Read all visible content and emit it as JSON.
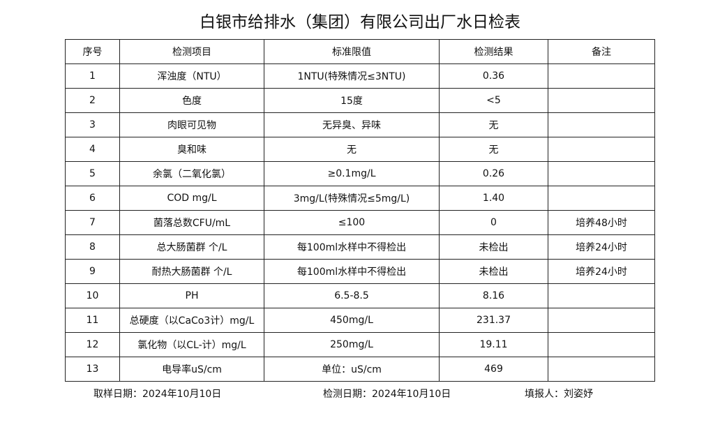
{
  "title": "白银市给排水（集团）有限公司出厂水日检表",
  "headers": [
    "序号",
    "检测项目",
    "标准限值",
    "检测结果",
    "备注"
  ],
  "rows": [
    [
      "1",
      "浑浊度（NTU）",
      "1NTU(特殊情况≤3NTU)",
      "0.36",
      ""
    ],
    [
      "2",
      "色度",
      "15度",
      "<5",
      ""
    ],
    [
      "3",
      "肉眼可见物",
      "无异臭、异味",
      "无",
      ""
    ],
    [
      "4",
      "臭和味",
      "无",
      "无",
      ""
    ],
    [
      "5",
      "余氯（二氧化氯）",
      "≥0.1mg/L",
      "0.26",
      ""
    ],
    [
      "6",
      "COD          mg/L",
      "3mg/L(特殊情况≤5mg/L)",
      "1.40",
      ""
    ],
    [
      "7",
      "菌落总数CFU/mL",
      "≤100",
      "0",
      "培养48小时"
    ],
    [
      "8",
      "总大肠菌群 个/L",
      "每100ml水样中不得检出",
      "未检出",
      "培养24小时"
    ],
    [
      "9",
      "耐热大肠菌群 个/L",
      "每100ml水样中不得检出",
      "未检出",
      "培养24小时"
    ],
    [
      "10",
      "PH",
      "6.5-8.5",
      "8.16",
      ""
    ],
    [
      "11",
      "总硬度（以CaCo3计）mg/L",
      "450mg/L",
      "231.37",
      ""
    ],
    [
      "12",
      "氯化物（以CL-计）mg/L",
      "250mg/L",
      "19.11",
      ""
    ],
    [
      "13",
      "电导率uS/cm",
      "单位：uS/cm",
      "469",
      ""
    ]
  ],
  "footer": {
    "sample_date": "取样日期：2024年10月10日",
    "test_date": "检测日期：2024年10月10日",
    "filler": "填报人：刘姿妤"
  }
}
